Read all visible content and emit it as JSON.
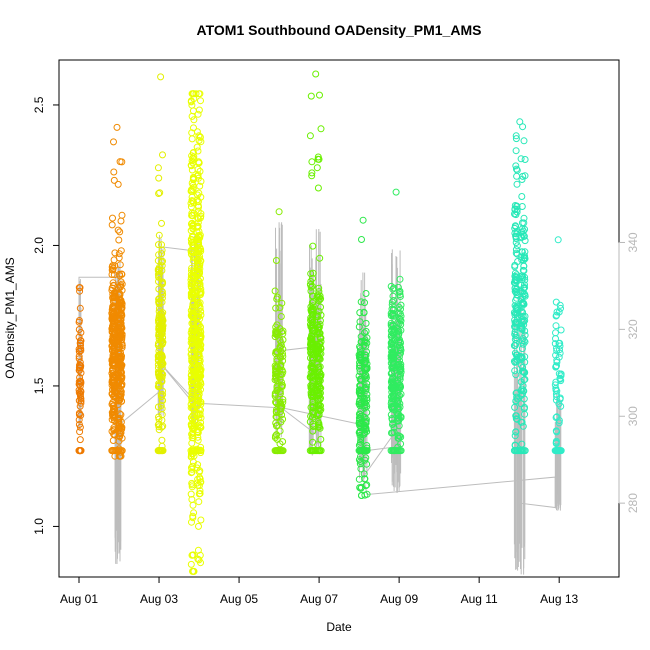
{
  "chart_data": {
    "type": "scatter",
    "title": "ATOM1 Southbound OADensity_PM1_AMS",
    "xlabel": "Date",
    "ylabel": "OADensity_PM1_AMS",
    "x_unit": "days since Aug 01",
    "xlim": [
      0,
      12.97
    ],
    "ylim": [
      0.82,
      2.66
    ],
    "x_ticks": [
      {
        "value": 0,
        "label": "Aug 01"
      },
      {
        "value": 2,
        "label": "Aug 03"
      },
      {
        "value": 4,
        "label": "Aug 05"
      },
      {
        "value": 6,
        "label": "Aug 07"
      },
      {
        "value": 8,
        "label": "Aug 09"
      },
      {
        "value": 10,
        "label": "Aug 11"
      },
      {
        "value": 12,
        "label": "Aug 13"
      }
    ],
    "y_ticks": [
      {
        "value": 1.0,
        "label": "1.0"
      },
      {
        "value": 1.5,
        "label": "1.5"
      },
      {
        "value": 2.0,
        "label": "2.0"
      },
      {
        "value": 2.5,
        "label": "2.5"
      }
    ],
    "y2_ticks": [
      {
        "value": 280,
        "label": "280"
      },
      {
        "value": 300,
        "label": "300"
      },
      {
        "value": 320,
        "label": "320"
      },
      {
        "value": 340,
        "label": "340"
      }
    ],
    "y2lim": [
      263,
      382
    ],
    "grid": false,
    "marker": "open-circle",
    "clusters": [
      {
        "name": "Aug 01 early",
        "x": [
          0.0,
          0.05
        ],
        "y_min": 1.27,
        "y_max": 1.85,
        "y_center": 1.55,
        "n": 60,
        "floor": 1.27,
        "color": "#ee7a00"
      },
      {
        "name": "Aug 01 late",
        "x": [
          0.82,
          1.08
        ],
        "y_min": 1.25,
        "y_max": 2.42,
        "y_center": 1.62,
        "n": 420,
        "floor": 1.27,
        "color": "#f08a00"
      },
      {
        "name": "Aug 03 early",
        "x": [
          1.98,
          2.1
        ],
        "y_min": 1.27,
        "y_max": 2.6,
        "y_center": 1.65,
        "n": 170,
        "floor": 1.27,
        "color": "#e3f000"
      },
      {
        "name": "Aug 03 late",
        "x": [
          2.8,
          3.05
        ],
        "y_min": 0.84,
        "y_max": 2.54,
        "y_center": 1.72,
        "n": 520,
        "floor": 1.27,
        "color": "#e9ff00"
      },
      {
        "name": "Aug 06",
        "x": [
          4.9,
          5.1
        ],
        "y_min": 1.27,
        "y_max": 2.12,
        "y_center": 1.55,
        "n": 110,
        "floor": 1.27,
        "color": "#88ec00"
      },
      {
        "name": "Aug 06 late",
        "x": [
          5.78,
          6.05
        ],
        "y_min": 1.27,
        "y_max": 2.61,
        "y_center": 1.6,
        "n": 260,
        "floor": 1.27,
        "color": "#6af000"
      },
      {
        "name": "Aug 08",
        "x": [
          7.0,
          7.2
        ],
        "y_min": 1.11,
        "y_max": 2.09,
        "y_center": 1.45,
        "n": 160,
        "floor": 1.27,
        "color": "#2ce84a"
      },
      {
        "name": "Aug 08 late",
        "x": [
          7.8,
          8.05
        ],
        "y_min": 1.27,
        "y_max": 2.19,
        "y_center": 1.58,
        "n": 220,
        "floor": 1.27,
        "color": "#30ec60"
      },
      {
        "name": "Aug 12",
        "x": [
          10.88,
          11.15
        ],
        "y_min": 1.27,
        "y_max": 2.44,
        "y_center": 1.78,
        "n": 240,
        "floor": 1.27,
        "color": "#28e8b8"
      },
      {
        "name": "Aug 13",
        "x": [
          11.9,
          12.05
        ],
        "y_min": 1.27,
        "y_max": 2.02,
        "y_center": 1.55,
        "n": 55,
        "floor": 1.27,
        "color": "#30ecc8"
      }
    ],
    "secondary_series_path": [
      [
        0.0,
        297
      ],
      [
        0.0,
        332
      ],
      [
        0.95,
        332
      ],
      [
        0.95,
        266
      ],
      [
        1.0,
        298
      ],
      [
        2.05,
        306
      ],
      [
        2.05,
        339
      ],
      [
        2.95,
        338
      ],
      [
        2.95,
        302
      ],
      [
        2.05,
        312
      ],
      [
        2.95,
        303
      ],
      [
        4.95,
        302
      ],
      [
        4.95,
        315
      ],
      [
        5.9,
        316
      ],
      [
        5.9,
        296
      ],
      [
        5.05,
        302
      ],
      [
        7.1,
        298
      ],
      [
        7.1,
        292
      ],
      [
        7.95,
        293
      ],
      [
        7.95,
        297
      ],
      [
        7.1,
        286
      ],
      [
        7.2,
        282
      ],
      [
        11.9,
        286
      ],
      [
        11.9,
        279
      ],
      [
        11.0,
        280
      ],
      [
        11.0,
        287
      ]
    ],
    "secondary_spikes": [
      {
        "x": [
          0.02,
          0.05
        ],
        "low": 297,
        "high": 332
      },
      {
        "x": [
          0.9,
          1.05
        ],
        "low": 266,
        "high": 336
      },
      {
        "x": [
          1.98,
          2.12
        ],
        "low": 300,
        "high": 342
      },
      {
        "x": [
          2.8,
          3.05
        ],
        "low": 298,
        "high": 343
      },
      {
        "x": [
          4.9,
          5.08
        ],
        "low": 295,
        "high": 345
      },
      {
        "x": [
          5.75,
          6.05
        ],
        "low": 290,
        "high": 344
      },
      {
        "x": [
          7.0,
          7.2
        ],
        "low": 285,
        "high": 334
      },
      {
        "x": [
          7.8,
          8.05
        ],
        "low": 282,
        "high": 340
      },
      {
        "x": [
          10.88,
          11.15
        ],
        "low": 263,
        "high": 330
      },
      {
        "x": [
          11.9,
          12.05
        ],
        "low": 278,
        "high": 306
      }
    ],
    "secondary_color": "#bdbdbd"
  }
}
